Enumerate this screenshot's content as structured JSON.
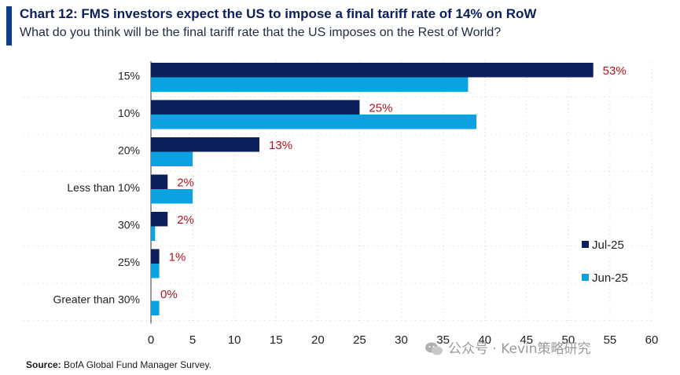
{
  "header": {
    "title": "Chart 12: FMS investors expect the US to impose a final tariff rate of 14% on RoW",
    "subtitle": "What do you think will be the final tariff rate that the US imposes on the Rest of World?"
  },
  "footer": {
    "source_label": "Source:",
    "source_text": " BofA Global Fund Manager Survey."
  },
  "watermark": {
    "text": "公众号 · Kevin策略研究"
  },
  "colors": {
    "jul": "#0d1f5c",
    "jun": "#0aa2e0",
    "label": "#b5121b",
    "accent": "#0b3d91"
  },
  "chart_data": {
    "type": "bar",
    "orientation": "horizontal",
    "title": "Chart 12: FMS investors expect the US to impose a final tariff rate of 14% on RoW",
    "subtitle": "What do you think will be the final tariff rate that the US imposes on the Rest of World?",
    "categories": [
      "15%",
      "10%",
      "20%",
      "Less than 10%",
      "30%",
      "25%",
      "Greater than 30%"
    ],
    "series": [
      {
        "name": "Jul-25",
        "values": [
          53,
          25,
          13,
          2,
          2,
          1,
          0
        ],
        "labels": [
          "53%",
          "25%",
          "13%",
          "2%",
          "2%",
          "1%",
          "0%"
        ]
      },
      {
        "name": "Jun-25",
        "values": [
          38,
          39,
          5,
          5,
          0.5,
          1,
          1
        ]
      }
    ],
    "xlim": [
      0,
      60
    ],
    "xticks": [
      0,
      5,
      10,
      15,
      20,
      25,
      30,
      35,
      40,
      45,
      50,
      55,
      60
    ],
    "xlabel": "",
    "ylabel": "",
    "legend": "right",
    "grid": "dotted"
  }
}
